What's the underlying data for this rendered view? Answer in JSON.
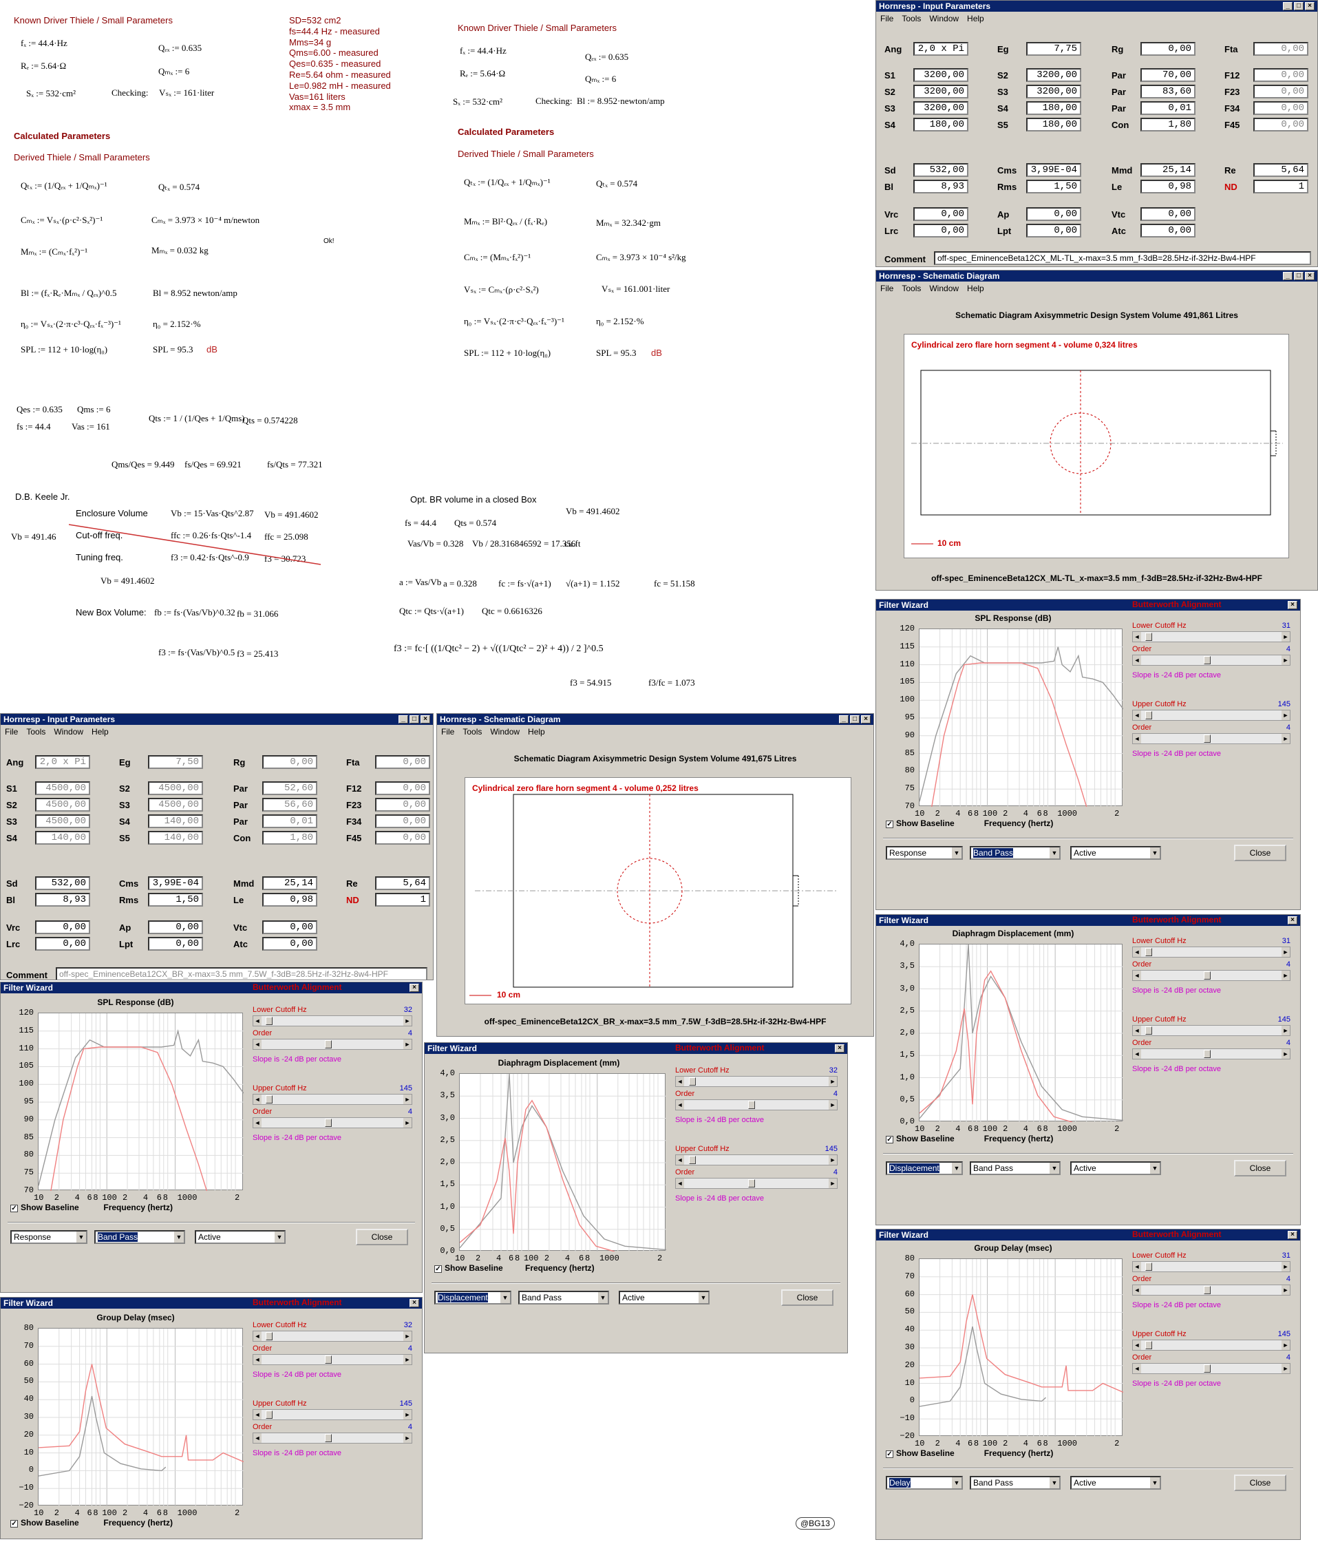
{
  "left_sheet": {
    "heading1": "Known Driver Thiele / Small Parameters",
    "fd": "fₓ := 44.4·Hz",
    "Re": "Rₑ := 5.64·Ω",
    "Sd": "Sₓ := 532·cm²",
    "Qed": "Qₑₓ := 0.635",
    "Qmd": "Qₘₓ := 6",
    "checking": "Checking:",
    "Vsd": "Vₛₓ := 161·liter",
    "heading2": "Calculated Parameters",
    "heading3": "Derived Thiele / Small Parameters",
    "Qtd_eq": "Qₜₓ := (1/Qₑₓ + 1/Qₘₓ)⁻¹",
    "Qtd_val": "Qₜₓ = 0.574",
    "Cmd_eq": "Cₘₓ := Vₛₓ·(ρ·c²·Sₓ²)⁻¹",
    "Cmd_val": "Cₘₓ = 3.973 × 10⁻⁴ m/newton",
    "Mmd_eq": "Mₘₓ := (Cₘₓ·fₓ²)⁻¹",
    "Mmd_val": "Mₘₓ = 0.032 kg",
    "ok": "Ok!",
    "Bl_eq": "Bl := (fₓ·Rₑ·Mₘₓ / Qₑₓ)^0.5",
    "Bl_val": "Bl = 8.952 newton/amp",
    "eta_eq": "η₀ := Vₛₓ·(2·π·c³·Qₑₓ·fₓ⁻³)⁻¹",
    "eta_val": "η₀ = 2.152·%",
    "spl_eq": "SPL := 112 + 10·log(η₀)",
    "spl_val": "SPL = 95.3",
    "db": "dB",
    "qes": "Qes := 0.635",
    "qms": "Qms := 6",
    "fs": "fs := 44.4",
    "vas": "Vas := 161",
    "qts_eq": "Qts := 1 / (1/Qes + 1/Qms)",
    "qts_val": "Qts = 0.574228",
    "r1": "Qms/Qes = 9.449",
    "r2": "fs/Qes = 69.921",
    "r3": "fs/Qts = 77.321",
    "keele": "D.B. Keele Jr.",
    "enc": "Enclosure Volume",
    "vb1": "Vb := 15·Vas·Qts^2.87",
    "vb1v": "Vb = 491.4602",
    "vb_side": "Vb = 491.46",
    "cut": "Cut-off freq.",
    "ffc": "ffc := 0.26·fs·Qts^-1.4",
    "ffcv": "ffc = 25.098",
    "tun": "Tuning freq.",
    "f3": "f3 := 0.42·fs·Qts^-0.9",
    "f3v": "f3 = 30.723",
    "vb2": "Vb = 491.4602",
    "newbox": "New Box Volume:",
    "fb": "fb := fs·(Vas/Vb)^0.32",
    "fbv": "fb = 31.066",
    "f3b": "f3 := fs·(Vas/Vb)^0.5",
    "f3bv": "f3 = 25.413"
  },
  "spec_text": [
    "SD=532 cm2",
    "fs=44.4 Hz - measured",
    "Mms=34 g",
    "Qms=6.00 - measured",
    "Qes=0.635 - measured",
    "Re=5.64 ohm - measured",
    "Le=0.982 mH - measured",
    "Vas=161 liters",
    "xmax = 3.5 mm"
  ],
  "right_sheet": {
    "heading1": "Known Driver Thiele / Small Parameters",
    "fd": "fₓ := 44.4·Hz",
    "Re": "Rₑ := 5.64·Ω",
    "Sd": "Sₓ := 532·cm²",
    "Qed": "Qₑₓ := 0.635",
    "Qmd": "Qₘₓ := 6",
    "checking": "Checking:",
    "Bl": "Bl := 8.952·newton/amp",
    "heading2": "Calculated Parameters",
    "heading3": "Derived Thiele / Small Parameters",
    "Qtd_eq": "Qₜₓ := (1/Qₑₓ + 1/Qₘₓ)⁻¹",
    "Qtd_val": "Qₜₓ = 0.574",
    "Mmd_eq": "Mₘₓ := Bl²·Qₑₓ / (fₓ·Rₑ)",
    "Mmd_val": "Mₘₓ = 32.342·gm",
    "Cmd_eq": "Cₘₓ := (Mₘₓ·fₓ²)⁻¹",
    "Cmd_val": "Cₘₓ = 3.973 × 10⁻⁴ s²/kg",
    "Vsd_eq": "Vₛₓ := Cₘₓ·(ρ·c²·Sₓ²)",
    "Vsd_val": "Vₛₓ = 161.001·liter",
    "eta_eq": "η₀ := Vₛₓ·(2·π·c³·Qₑₓ·fₓ⁻³)⁻¹",
    "eta_val": "η₀ = 2.152·%",
    "spl_eq": "SPL := 112 + 10·log(η₀)",
    "spl_val": "SPL = 95.3",
    "db": "dB",
    "opt": "Opt. BR volume in a closed Box",
    "vbv": "Vb = 491.4602",
    "fs": "fs = 44.4",
    "qts": "Qts = 0.574",
    "vasvb": "Vas/Vb = 0.328",
    "vbcuft": "Vb / 28.316846592 = 17.356",
    "cuft": "cu.ft",
    "a_eq": "a := Vas/Vb",
    "a_val": "a = 0.328",
    "fc_eq": "fc := fs·√(a+1)",
    "sq": "√(a+1) = 1.152",
    "fc_val": "fc = 51.158",
    "qtc_eq": "Qtc := Qts·√(a+1)",
    "qtc_val": "Qtc = 0.6616326",
    "f3_eq": "f3 := fc·[ ((1/Qtc² − 2) + √((1/Qtc² − 2)² + 4)) / 2 ]^0.5",
    "f3_val": "f3 = 54.915",
    "f3fc": "f3/fc = 1.073"
  },
  "input_windows": [
    {
      "title": "Hornresp - Input Parameters",
      "menu": [
        "File",
        "Tools",
        "Window",
        "Help"
      ],
      "ang": "2,0 x Pi",
      "eg": "7,75",
      "rg": "0,00",
      "fta": "0,00",
      "s1": "3200,00",
      "s2": "3200,00",
      "s3": "3200,00",
      "s4": "180,00",
      "s2b": "3200,00",
      "s3b": "3200,00",
      "s4b": "180,00",
      "s5": "180,00",
      "par1": "70,00",
      "par2": "83,60",
      "par3": "0,01",
      "con": "1,80",
      "f12": "0,00",
      "f23": "0,00",
      "f34": "0,00",
      "f45": "0,00",
      "sd": "532,00",
      "bl": "8,93",
      "cms": "3,99E-04",
      "rms": "1,50",
      "mmd": "25,14",
      "le": "0,98",
      "re": "5,64",
      "nd": "1",
      "vrc": "0,00",
      "lrc": "0,00",
      "ap": "0,00",
      "lpt": "0,00",
      "vtc": "0,00",
      "atc": "0,00",
      "comment": "off-spec_EminenceBeta12CX_ML-TL_x-max=3.5 mm_f-3dB=28.5Hz-if-32Hz-Bw4-HPF"
    },
    {
      "title": "Hornresp - Input Parameters",
      "menu": [
        "File",
        "Tools",
        "Window",
        "Help"
      ],
      "ang": "2,0 x Pi",
      "eg": "7,50",
      "rg": "0,00",
      "fta": "0,00",
      "s1": "4500,00",
      "s2": "4500,00",
      "s3": "4500,00",
      "s4": "140,00",
      "s2b": "4500,00",
      "s3b": "4500,00",
      "s4b": "140,00",
      "s5": "140,00",
      "par1": "52,60",
      "par2": "56,60",
      "par3": "0,01",
      "con": "1,80",
      "f12": "0,00",
      "f23": "0,00",
      "f34": "0,00",
      "f45": "0,00",
      "sd": "532,00",
      "bl": "8,93",
      "cms": "3,99E-04",
      "rms": "1,50",
      "mmd": "25,14",
      "le": "0,98",
      "re": "5,64",
      "nd": "1",
      "vrc": "0,00",
      "lrc": "0,00",
      "ap": "0,00",
      "lpt": "0,00",
      "vtc": "0,00",
      "atc": "0,00",
      "comment": "off-spec_EminenceBeta12CX_BR_x-max=3.5 mm_7.5W_f-3dB=28.5Hz-if-32Hz-8w4-HPF"
    }
  ],
  "labels": {
    "ang": "Ang",
    "eg": "Eg",
    "rg": "Rg",
    "fta": "Fta",
    "s1": "S1",
    "s2": "S2",
    "s3": "S3",
    "s4": "S4",
    "s5": "S5",
    "par": "Par",
    "con": "Con",
    "f12": "F12",
    "f23": "F23",
    "f34": "F34",
    "f45": "F45",
    "sd": "Sd",
    "bl": "Bl",
    "cms": "Cms",
    "rms": "Rms",
    "mmd": "Mmd",
    "le": "Le",
    "re": "Re",
    "nd": "ND",
    "vrc": "Vrc",
    "lrc": "Lrc",
    "ap": "Ap",
    "lpt": "Lpt",
    "vtc": "Vtc",
    "atc": "Atc",
    "comment": "Comment"
  },
  "schematic_windows": [
    {
      "title": "Hornresp - Schematic Diagram",
      "menu": [
        "File",
        "Tools",
        "Window",
        "Help"
      ],
      "header": "Schematic Diagram   Axisymmetric Design   System Volume 491,861 Litres",
      "segment": "Cylindrical zero flare horn segment 4 - volume 0,324 litres",
      "scale": "10 cm",
      "footer": "off-spec_EminenceBeta12CX_ML-TL_x-max=3.5 mm_f-3dB=28.5Hz-if-32Hz-Bw4-HPF"
    },
    {
      "title": "Hornresp - Schematic Diagram",
      "menu": [
        "File",
        "Tools",
        "Window",
        "Help"
      ],
      "header": "Schematic Diagram   Axisymmetric Design   System Volume 491,675 Litres",
      "segment": "Cylindrical zero flare horn segment 4 - volume 0,252 litres",
      "scale": "10 cm",
      "footer": "off-spec_EminenceBeta12CX_BR_x-max=3.5 mm_7.5W_f-3dB=28.5Hz-if-32Hz-Bw4-HPF"
    }
  ],
  "filter_common": {
    "title": "Filter Wizard",
    "lower": "Lower Cutoff  Hz",
    "order": "Order",
    "slope": "Slope is -24 dB per octave",
    "upper": "Upper Cutoff  Hz",
    "order_val": "4",
    "upper_val": "145",
    "show_baseline": "Show Baseline",
    "xlabel": "Frequency (hertz)",
    "alignment": "Butterworth Alignment",
    "mode2": "Band Pass",
    "mode3": "Active",
    "close": "Close",
    "xticks": [
      "10",
      "2",
      "4",
      "6",
      "8",
      "100",
      "2",
      "4",
      "6",
      "8",
      "1000",
      "2"
    ]
  },
  "filter_windows": [
    {
      "id": "r-spl",
      "chart_title": "SPL Response (dB)",
      "lower_val": "31",
      "mode1": "Response",
      "mode1_sel": false,
      "mode2_sel": true,
      "yticks": [
        "120",
        "115",
        "110",
        "105",
        "100",
        "95",
        "90",
        "85",
        "80",
        "75",
        "70"
      ]
    },
    {
      "id": "r-disp",
      "chart_title": "Diaphragm Displacement (mm)",
      "lower_val": "31",
      "mode1": "Displacement",
      "mode1_sel": true,
      "mode2_sel": false,
      "yticks": [
        "4,0",
        "3,5",
        "3,0",
        "2,5",
        "2,0",
        "1,5",
        "1,0",
        "0,5",
        "0,0"
      ]
    },
    {
      "id": "r-gd",
      "chart_title": "Group Delay (msec)",
      "lower_val": "31",
      "mode1": "Delay",
      "mode1_sel": true,
      "mode2_sel": false,
      "yticks": [
        "80",
        "70",
        "60",
        "50",
        "40",
        "30",
        "20",
        "10",
        "0",
        "−10",
        "−20"
      ]
    },
    {
      "id": "l-spl",
      "chart_title": "SPL Response (dB)",
      "lower_val": "32",
      "mode1": "Response",
      "mode1_sel": false,
      "mode2_sel": true,
      "yticks": [
        "120",
        "115",
        "110",
        "105",
        "100",
        "95",
        "90",
        "85",
        "80",
        "75",
        "70"
      ]
    },
    {
      "id": "m-disp",
      "chart_title": "Diaphragm Displacement (mm)",
      "lower_val": "32",
      "mode1": "Displacement",
      "mode1_sel": true,
      "mode2_sel": false,
      "yticks": [
        "4,0",
        "3,5",
        "3,0",
        "2,5",
        "2,0",
        "1,5",
        "1,0",
        "0,5",
        "0,0"
      ]
    },
    {
      "id": "l-gd",
      "chart_title": "Group Delay (msec)",
      "lower_val": "32",
      "mode1": "",
      "mode1_sel": false,
      "mode2_sel": false,
      "yticks": [
        "80",
        "70",
        "60",
        "50",
        "40",
        "30",
        "20",
        "10",
        "0",
        "−10",
        "−20"
      ]
    }
  ],
  "watermark": "@BG13"
}
